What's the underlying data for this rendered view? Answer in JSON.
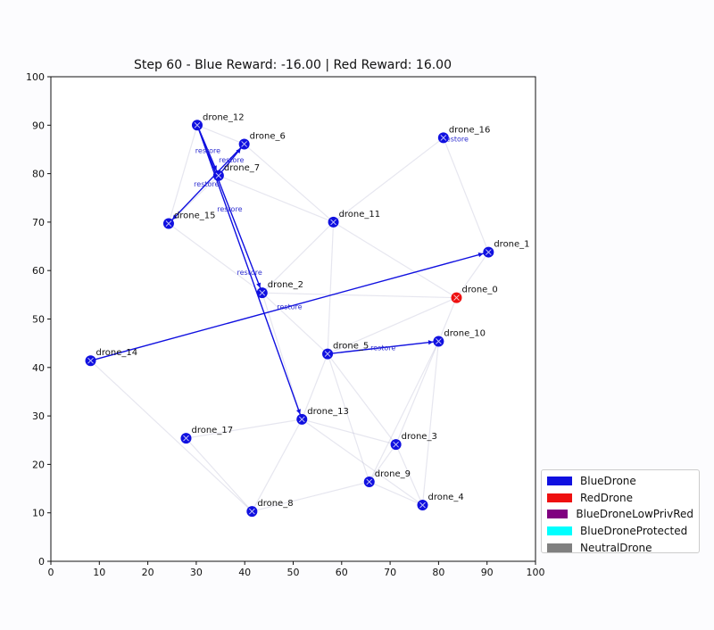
{
  "chart_data": {
    "type": "scatter",
    "title": "Step 60 - Blue Reward: -16.00 | Red Reward: 16.00",
    "xlabel": "",
    "ylabel": "",
    "xlim": [
      0,
      100
    ],
    "ylim": [
      0,
      100
    ],
    "xticks": [
      0,
      10,
      20,
      30,
      40,
      50,
      60,
      70,
      80,
      90,
      100
    ],
    "yticks": [
      0,
      10,
      20,
      30,
      40,
      50,
      60,
      70,
      80,
      90,
      100
    ],
    "grid": false,
    "legend_position": "lower-right-outside",
    "colors": {
      "blue": "#1010e0",
      "red": "#ee1010",
      "purple": "#800080",
      "cyan": "#00ffff",
      "gray": "#808080"
    },
    "nodes": [
      {
        "name": "drone_0",
        "x": 83.7,
        "y": 54.4,
        "type": "RedDrone"
      },
      {
        "name": "drone_1",
        "x": 90.3,
        "y": 63.8,
        "type": "BlueDrone"
      },
      {
        "name": "drone_2",
        "x": 43.6,
        "y": 55.4,
        "type": "BlueDrone"
      },
      {
        "name": "drone_3",
        "x": 71.2,
        "y": 24.1,
        "type": "BlueDrone"
      },
      {
        "name": "drone_4",
        "x": 76.7,
        "y": 11.6,
        "type": "BlueDrone"
      },
      {
        "name": "drone_5",
        "x": 57.1,
        "y": 42.8,
        "type": "BlueDrone"
      },
      {
        "name": "drone_6",
        "x": 39.9,
        "y": 86.1,
        "type": "BlueDrone"
      },
      {
        "name": "drone_7",
        "x": 34.6,
        "y": 79.6,
        "type": "BlueDrone"
      },
      {
        "name": "drone_8",
        "x": 41.5,
        "y": 10.3,
        "type": "BlueDrone"
      },
      {
        "name": "drone_9",
        "x": 65.7,
        "y": 16.4,
        "type": "BlueDrone"
      },
      {
        "name": "drone_10",
        "x": 80.0,
        "y": 45.4,
        "type": "BlueDrone"
      },
      {
        "name": "drone_11",
        "x": 58.3,
        "y": 70.0,
        "type": "BlueDrone"
      },
      {
        "name": "drone_12",
        "x": 30.2,
        "y": 90.0,
        "type": "BlueDrone"
      },
      {
        "name": "drone_13",
        "x": 51.8,
        "y": 29.3,
        "type": "BlueDrone"
      },
      {
        "name": "drone_14",
        "x": 8.2,
        "y": 41.4,
        "type": "BlueDrone"
      },
      {
        "name": "drone_15",
        "x": 24.3,
        "y": 69.7,
        "type": "BlueDrone"
      },
      {
        "name": "drone_16",
        "x": 81.0,
        "y": 87.4,
        "type": "BlueDrone"
      },
      {
        "name": "drone_17",
        "x": 27.9,
        "y": 25.4,
        "type": "BlueDrone"
      }
    ],
    "active_links": [
      {
        "from": "drone_12",
        "to": "drone_13",
        "label": "restore"
      },
      {
        "from": "drone_12",
        "to": "drone_2",
        "label": "restore"
      },
      {
        "from": "drone_7",
        "to": "drone_6",
        "label": "restore"
      },
      {
        "from": "drone_6",
        "to": "drone_15",
        "label": "restore"
      },
      {
        "from": "drone_12",
        "to": "drone_7",
        "label": "restore"
      },
      {
        "from": "drone_14",
        "to": "drone_1",
        "label": "restore"
      },
      {
        "from": "drone_5",
        "to": "drone_10",
        "label": "restore"
      },
      {
        "from": "drone_16",
        "to": "drone_16",
        "label": "restore"
      }
    ],
    "faint_links": [
      [
        "drone_12",
        "drone_6"
      ],
      [
        "drone_12",
        "drone_15"
      ],
      [
        "drone_6",
        "drone_11"
      ],
      [
        "drone_7",
        "drone_11"
      ],
      [
        "drone_15",
        "drone_2"
      ],
      [
        "drone_11",
        "drone_2"
      ],
      [
        "drone_11",
        "drone_16"
      ],
      [
        "drone_16",
        "drone_1"
      ],
      [
        "drone_2",
        "drone_5"
      ],
      [
        "drone_2",
        "drone_0"
      ],
      [
        "drone_11",
        "drone_0"
      ],
      [
        "drone_1",
        "drone_0"
      ],
      [
        "drone_5",
        "drone_0"
      ],
      [
        "drone_5",
        "drone_3"
      ],
      [
        "drone_5",
        "drone_9"
      ],
      [
        "drone_5",
        "drone_13"
      ],
      [
        "drone_5",
        "drone_11"
      ],
      [
        "drone_10",
        "drone_3"
      ],
      [
        "drone_10",
        "drone_9"
      ],
      [
        "drone_10",
        "drone_4"
      ],
      [
        "drone_13",
        "drone_3"
      ],
      [
        "drone_13",
        "drone_4"
      ],
      [
        "drone_13",
        "drone_8"
      ],
      [
        "drone_13",
        "drone_17"
      ],
      [
        "drone_14",
        "drone_8"
      ],
      [
        "drone_17",
        "drone_8"
      ],
      [
        "drone_9",
        "drone_8"
      ],
      [
        "drone_9",
        "drone_3"
      ],
      [
        "drone_3",
        "drone_4"
      ],
      [
        "drone_9",
        "drone_4"
      ],
      [
        "drone_2",
        "drone_13"
      ],
      [
        "drone_7",
        "drone_15"
      ],
      [
        "drone_0",
        "drone_10"
      ]
    ],
    "legend": [
      {
        "label": "BlueDrone",
        "color": "#1010e0"
      },
      {
        "label": "RedDrone",
        "color": "#ee1010"
      },
      {
        "label": "BlueDroneLowPrivRed",
        "color": "#800080"
      },
      {
        "label": "BlueDroneProtected",
        "color": "#00ffff"
      },
      {
        "label": "NeutralDrone",
        "color": "#808080"
      }
    ]
  }
}
